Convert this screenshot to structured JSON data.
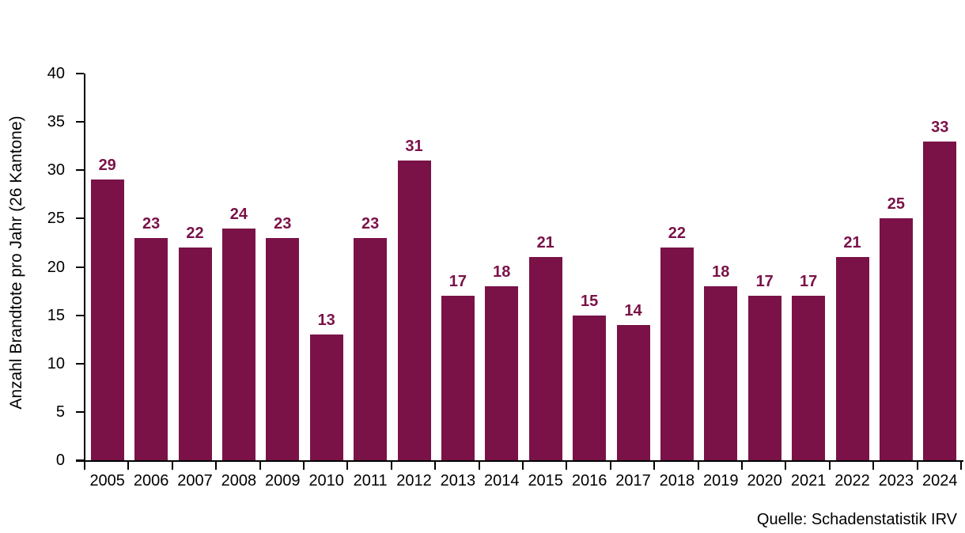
{
  "chart_data": {
    "type": "bar",
    "categories": [
      "2005",
      "2006",
      "2007",
      "2008",
      "2009",
      "2010",
      "2011",
      "2012",
      "2013",
      "2014",
      "2015",
      "2016",
      "2017",
      "2018",
      "2019",
      "2020",
      "2021",
      "2022",
      "2023",
      "2024"
    ],
    "values": [
      29,
      23,
      22,
      24,
      23,
      13,
      23,
      31,
      17,
      18,
      21,
      15,
      14,
      22,
      18,
      17,
      17,
      21,
      25,
      33
    ],
    "title": "",
    "xlabel": "",
    "ylabel": "Anzahl Brandtote pro Jahr (26 Kantone)",
    "ylim": [
      0,
      40
    ],
    "yticks": [
      0,
      5,
      10,
      15,
      20,
      25,
      30,
      35,
      40
    ],
    "grid": false,
    "legend": "none",
    "bar_color": "#7A1248",
    "value_label_color": "#7A1248",
    "axis_color": "#000000",
    "source": "Quelle: Schadenstatistik IRV"
  }
}
